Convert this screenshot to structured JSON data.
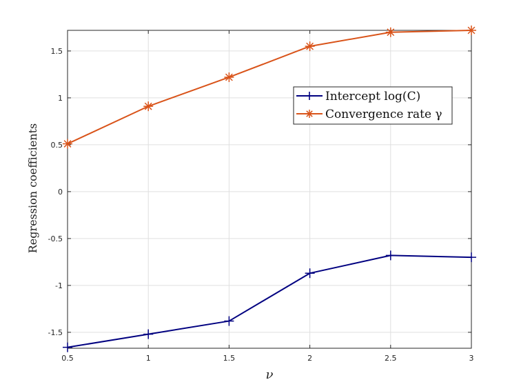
{
  "chart_data": {
    "type": "line",
    "xlabel": "ν",
    "ylabel": "Regression coefficients",
    "xlim": [
      0.5,
      3
    ],
    "ylim": [
      -1.67,
      1.72
    ],
    "xticks": [
      0.5,
      1,
      1.5,
      2,
      2.5,
      3
    ],
    "xtick_labels": [
      "0.5",
      "1",
      "1.5",
      "2",
      "2.5",
      "3"
    ],
    "yticks": [
      -1.5,
      -1,
      -0.5,
      0,
      0.5,
      1,
      1.5
    ],
    "ytick_labels": [
      "-1.5",
      "-1",
      "-0.5",
      "0",
      "0.5",
      "1",
      "1.5"
    ],
    "grid": true,
    "legend_position": "upper-right",
    "x": [
      0.5,
      1,
      1.5,
      2,
      2.5,
      3
    ],
    "series": [
      {
        "name": "Intercept log(C)",
        "color": "#000080",
        "marker": "plus",
        "values": [
          -1.66,
          -1.52,
          -1.38,
          -0.87,
          -0.68,
          -0.7
        ]
      },
      {
        "name": "Convergence rate γ",
        "color": "#D95319",
        "marker": "asterisk",
        "values": [
          0.51,
          0.91,
          1.22,
          1.55,
          1.7,
          1.72
        ]
      }
    ]
  }
}
